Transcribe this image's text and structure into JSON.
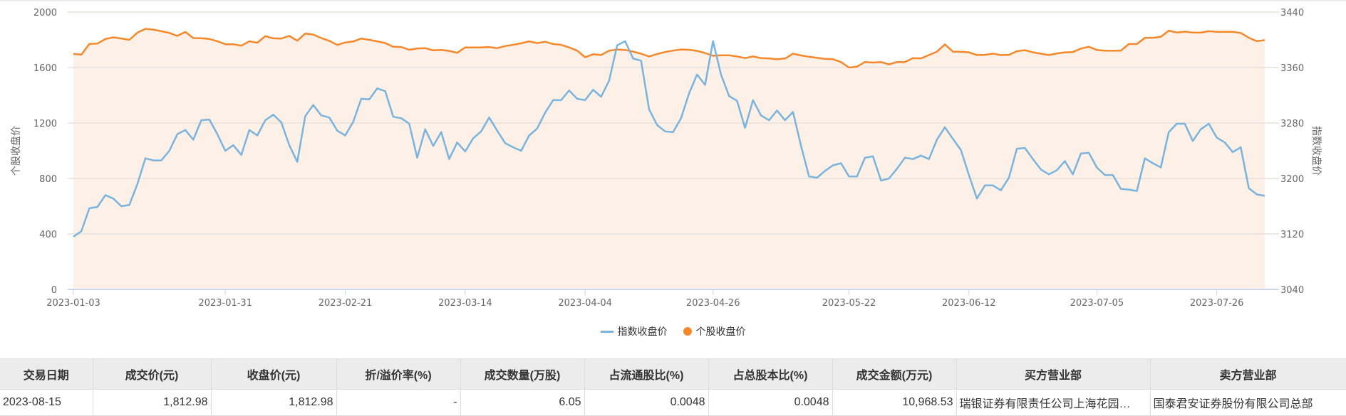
{
  "chart_data": {
    "type": "line",
    "title": "",
    "xlabel": "",
    "ylabel_left": "个股收盘价",
    "ylabel_right": "指数收盘价",
    "ylim_left": [
      0,
      2000
    ],
    "ylim_right": [
      3040,
      3440
    ],
    "yticks_left": [
      0,
      400,
      800,
      1200,
      1600,
      2000
    ],
    "yticks_right": [
      3040,
      3120,
      3200,
      3280,
      3360,
      3440
    ],
    "xticks": [
      "2023-01-03",
      "2023-01-31",
      "2023-02-21",
      "2023-03-14",
      "2023-04-04",
      "2023-04-26",
      "2023-05-22",
      "2023-06-12",
      "2023-07-05",
      "2023-07-26"
    ],
    "grid": true,
    "legend_position": "bottom",
    "series": [
      {
        "name": "指数收盘价",
        "axis": "right",
        "color": "#7ab4de",
        "values": [
          3116,
          3124,
          3157,
          3159,
          3176,
          3171,
          3160,
          3162,
          3192,
          3229,
          3226,
          3226,
          3240,
          3264,
          3270,
          3256,
          3284,
          3285,
          3264,
          3240,
          3248,
          3234,
          3270,
          3262,
          3284,
          3292,
          3281,
          3248,
          3224,
          3290,
          3306,
          3291,
          3288,
          3269,
          3262,
          3282,
          3315,
          3314,
          3330,
          3326,
          3289,
          3287,
          3279,
          3230,
          3271,
          3247,
          3267,
          3228,
          3252,
          3239,
          3258,
          3268,
          3288,
          3269,
          3251,
          3245,
          3240,
          3262,
          3272,
          3295,
          3313,
          3313,
          3327,
          3315,
          3313,
          3328,
          3318,
          3341,
          3392,
          3398,
          3373,
          3370,
          3300,
          3277,
          3268,
          3267,
          3287,
          3323,
          3350,
          3335,
          3398,
          3350,
          3319,
          3312,
          3273,
          3313,
          3291,
          3284,
          3298,
          3284,
          3296,
          3247,
          3203,
          3201,
          3211,
          3219,
          3222,
          3203,
          3203,
          3230,
          3232,
          3197,
          3200,
          3214,
          3230,
          3228,
          3233,
          3228,
          3256,
          3274,
          3257,
          3241,
          3205,
          3171,
          3190,
          3190,
          3183,
          3201,
          3243,
          3244,
          3228,
          3213,
          3206,
          3212,
          3225,
          3206,
          3236,
          3237,
          3216,
          3205,
          3205,
          3185,
          3184,
          3182,
          3229,
          3222,
          3216,
          3267,
          3279,
          3279,
          3254,
          3271,
          3279,
          3259,
          3252,
          3238,
          3245,
          3186,
          3177,
          3175
        ]
      },
      {
        "name": "个股收盘价",
        "axis": "left",
        "color": "#f5882a",
        "values": [
          1698,
          1694,
          1771,
          1773,
          1806,
          1818,
          1810,
          1800,
          1852,
          1879,
          1874,
          1862,
          1850,
          1828,
          1857,
          1813,
          1812,
          1806,
          1790,
          1768,
          1768,
          1758,
          1789,
          1779,
          1826,
          1811,
          1809,
          1828,
          1794,
          1845,
          1838,
          1813,
          1793,
          1763,
          1781,
          1788,
          1809,
          1800,
          1789,
          1777,
          1750,
          1748,
          1728,
          1738,
          1740,
          1724,
          1727,
          1720,
          1706,
          1745,
          1745,
          1745,
          1748,
          1740,
          1755,
          1764,
          1775,
          1789,
          1776,
          1786,
          1770,
          1764,
          1745,
          1722,
          1675,
          1696,
          1690,
          1721,
          1730,
          1727,
          1715,
          1700,
          1680,
          1698,
          1712,
          1722,
          1730,
          1728,
          1720,
          1705,
          1685,
          1688,
          1688,
          1680,
          1668,
          1680,
          1668,
          1666,
          1660,
          1665,
          1700,
          1687,
          1678,
          1671,
          1663,
          1660,
          1640,
          1600,
          1606,
          1640,
          1636,
          1640,
          1623,
          1640,
          1640,
          1668,
          1666,
          1690,
          1715,
          1767,
          1715,
          1714,
          1710,
          1690,
          1692,
          1700,
          1690,
          1692,
          1718,
          1725,
          1710,
          1700,
          1690,
          1702,
          1710,
          1712,
          1737,
          1750,
          1727,
          1722,
          1722,
          1722,
          1770,
          1770,
          1814,
          1815,
          1822,
          1866,
          1853,
          1859,
          1853,
          1852,
          1862,
          1858,
          1858,
          1858,
          1850,
          1815,
          1790,
          1798
        ]
      }
    ]
  },
  "legend": {
    "items": [
      {
        "label": "指数收盘价",
        "marker": "line",
        "color": "#7ab4de"
      },
      {
        "label": "个股收盘价",
        "marker": "dot",
        "color": "#f5882a"
      }
    ]
  },
  "table": {
    "headers": [
      "交易日期",
      "成交价(元)",
      "收盘价(元)",
      "折/溢价率(%)",
      "成交数量(万股)",
      "占流通股比(%)",
      "占总股本比(%)",
      "成交金额(万元)",
      "买方营业部",
      "卖方营业部"
    ],
    "rows": [
      [
        "2023-08-15",
        "1,812.98",
        "1,812.98",
        "-",
        "6.05",
        "0.0048",
        "0.0048",
        "10,968.53",
        "瑞银证券有限责任公司上海花园…",
        "国泰君安证券股份有限公司总部"
      ]
    ]
  },
  "colors": {
    "area_fill": "#fdf0e6",
    "grid": "#e6e0dc",
    "axis": "#ccd6eb"
  }
}
